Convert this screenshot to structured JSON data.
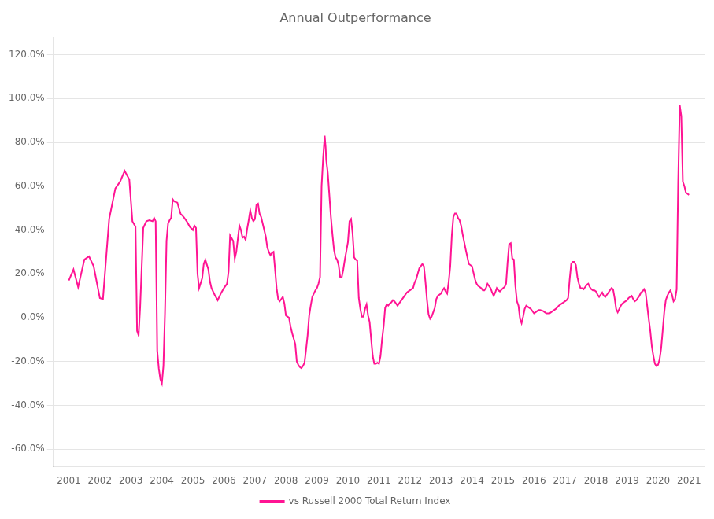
{
  "chart_data": {
    "type": "line",
    "title": "Annual Outperformance",
    "x": [
      2001.0,
      2001.15,
      2001.3,
      2001.5,
      2001.65,
      2001.8,
      2002.0,
      2002.1,
      2002.3,
      2002.5,
      2002.65,
      2002.8,
      2002.95,
      2003.05,
      2003.15,
      2003.2,
      2003.25,
      2003.3,
      2003.4,
      2003.5,
      2003.6,
      2003.7,
      2003.75,
      2003.8,
      2003.85,
      2003.9,
      2003.95,
      2004.0,
      2004.05,
      2004.1,
      2004.15,
      2004.2,
      2004.25,
      2004.3,
      2004.35,
      2004.4,
      2004.5,
      2004.6,
      2004.7,
      2004.8,
      2004.9,
      2005.0,
      2005.05,
      2005.1,
      2005.15,
      2005.2,
      2005.3,
      2005.35,
      2005.4,
      2005.5,
      2005.55,
      2005.6,
      2005.7,
      2005.8,
      2005.9,
      2006.0,
      2006.1,
      2006.15,
      2006.2,
      2006.3,
      2006.35,
      2006.4,
      2006.5,
      2006.55,
      2006.6,
      2006.65,
      2006.7,
      2006.75,
      2006.8,
      2006.85,
      2006.9,
      2006.95,
      2007.0,
      2007.05,
      2007.1,
      2007.15,
      2007.2,
      2007.3,
      2007.35,
      2007.4,
      2007.45,
      2007.5,
      2007.55,
      2007.6,
      2007.65,
      2007.7,
      2007.75,
      2007.8,
      2007.9,
      2007.95,
      2008.0,
      2008.05,
      2008.1,
      2008.15,
      2008.2,
      2008.3,
      2008.35,
      2008.4,
      2008.45,
      2008.5,
      2008.55,
      2008.6,
      2008.65,
      2008.7,
      2008.75,
      2008.8,
      2008.85,
      2008.9,
      2008.95,
      2009.0,
      2009.05,
      2009.1,
      2009.15,
      2009.2,
      2009.25,
      2009.28,
      2009.3,
      2009.35,
      2009.4,
      2009.45,
      2009.5,
      2009.55,
      2009.6,
      2009.65,
      2009.7,
      2009.75,
      2009.8,
      2009.85,
      2009.9,
      2010.0,
      2010.05,
      2010.1,
      2010.15,
      2010.2,
      2010.25,
      2010.3,
      2010.35,
      2010.4,
      2010.45,
      2010.5,
      2010.55,
      2010.6,
      2010.65,
      2010.7,
      2010.75,
      2010.8,
      2010.85,
      2010.9,
      2010.95,
      2011.0,
      2011.05,
      2011.1,
      2011.15,
      2011.2,
      2011.25,
      2011.3,
      2011.35,
      2011.4,
      2011.45,
      2011.5,
      2011.55,
      2011.6,
      2011.65,
      2011.7,
      2011.75,
      2011.8,
      2011.9,
      2012.0,
      2012.1,
      2012.15,
      2012.2,
      2012.3,
      2012.4,
      2012.45,
      2012.5,
      2012.55,
      2012.6,
      2012.65,
      2012.7,
      2012.75,
      2012.8,
      2012.85,
      2012.9,
      2013.0,
      2013.05,
      2013.1,
      2013.15,
      2013.2,
      2013.25,
      2013.3,
      2013.35,
      2013.4,
      2013.45,
      2013.5,
      2013.55,
      2013.6,
      2013.65,
      2013.7,
      2013.8,
      2013.9,
      2014.0,
      2014.1,
      2014.15,
      2014.2,
      2014.3,
      2014.35,
      2014.4,
      2014.45,
      2014.5,
      2014.55,
      2014.6,
      2014.65,
      2014.7,
      2014.75,
      2014.8,
      2014.85,
      2014.9,
      2015.0,
      2015.05,
      2015.1,
      2015.15,
      2015.2,
      2015.25,
      2015.3,
      2015.35,
      2015.4,
      2015.45,
      2015.5,
      2015.55,
      2015.6,
      2015.65,
      2015.7,
      2015.75,
      2015.8,
      2015.9,
      2016.0,
      2016.05,
      2016.1,
      2016.15,
      2016.2,
      2016.3,
      2016.35,
      2016.4,
      2016.5,
      2016.55,
      2016.6,
      2016.7,
      2016.8,
      2016.9,
      2016.95,
      2017.0,
      2017.05,
      2017.1,
      2017.15,
      2017.2,
      2017.25,
      2017.3,
      2017.35,
      2017.4,
      2017.45,
      2017.5,
      2017.55,
      2017.6,
      2017.65,
      2017.7,
      2017.75,
      2017.8,
      2017.85,
      2017.9,
      2017.95,
      2018.0,
      2018.05,
      2018.1,
      2018.15,
      2018.2,
      2018.25,
      2018.3,
      2018.35,
      2018.4,
      2018.45,
      2018.5,
      2018.55,
      2018.6,
      2018.65,
      2018.7,
      2018.75,
      2018.8,
      2018.85,
      2018.9,
      2018.95,
      2019.0,
      2019.05,
      2019.1,
      2019.15,
      2019.2,
      2019.25,
      2019.3,
      2019.35,
      2019.4,
      2019.45,
      2019.5,
      2019.55,
      2019.6,
      2019.65,
      2019.7,
      2019.75,
      2019.8,
      2019.85,
      2019.9,
      2019.95,
      2020.0,
      2020.05,
      2020.1,
      2020.15,
      2020.2,
      2020.25,
      2020.3,
      2020.35,
      2020.4,
      2020.45,
      2020.5,
      2020.55,
      2020.6,
      2020.65,
      2020.7,
      2020.75,
      2020.8,
      2020.85,
      2020.9,
      2020.95,
      2021.0
    ],
    "series": [
      {
        "name": "vs Russell 2000 Total Return Index",
        "color": "#FF1493",
        "values": [
          0.17,
          0.22,
          0.14,
          0.265,
          0.28,
          0.235,
          0.09,
          0.085,
          0.45,
          0.59,
          0.62,
          0.67,
          0.63,
          0.44,
          0.415,
          -0.06,
          -0.08,
          0.05,
          0.41,
          0.44,
          0.445,
          0.44,
          0.455,
          0.44,
          -0.15,
          -0.23,
          -0.28,
          -0.3,
          -0.22,
          0.02,
          0.35,
          0.43,
          0.445,
          0.455,
          0.54,
          0.53,
          0.525,
          0.475,
          0.46,
          0.44,
          0.415,
          0.4,
          0.42,
          0.41,
          0.2,
          0.135,
          0.18,
          0.245,
          0.265,
          0.22,
          0.165,
          0.135,
          0.105,
          0.08,
          0.11,
          0.135,
          0.155,
          0.21,
          0.375,
          0.35,
          0.27,
          0.3,
          0.42,
          0.4,
          0.365,
          0.37,
          0.355,
          0.405,
          0.445,
          0.49,
          0.455,
          0.44,
          0.45,
          0.515,
          0.52,
          0.475,
          0.46,
          0.4,
          0.37,
          0.32,
          0.3,
          0.285,
          0.295,
          0.3,
          0.22,
          0.135,
          0.085,
          0.075,
          0.095,
          0.065,
          0.01,
          0.005,
          0.0,
          -0.04,
          -0.07,
          -0.12,
          -0.2,
          -0.215,
          -0.225,
          -0.23,
          -0.22,
          -0.205,
          -0.145,
          -0.08,
          0.01,
          0.055,
          0.095,
          0.11,
          0.125,
          0.135,
          0.155,
          0.185,
          0.6,
          0.73,
          0.83,
          0.78,
          0.72,
          0.66,
          0.56,
          0.46,
          0.38,
          0.31,
          0.275,
          0.265,
          0.24,
          0.185,
          0.185,
          0.22,
          0.265,
          0.345,
          0.44,
          0.45,
          0.385,
          0.275,
          0.265,
          0.26,
          0.09,
          0.04,
          0.005,
          0.005,
          0.04,
          0.06,
          0.01,
          -0.02,
          -0.1,
          -0.175,
          -0.21,
          -0.21,
          -0.205,
          -0.21,
          -0.175,
          -0.1,
          -0.04,
          0.045,
          0.06,
          0.055,
          0.065,
          0.07,
          0.08,
          0.075,
          0.065,
          0.055,
          0.065,
          0.075,
          0.085,
          0.095,
          0.115,
          0.125,
          0.135,
          0.16,
          0.175,
          0.225,
          0.245,
          0.235,
          0.165,
          0.08,
          0.015,
          -0.005,
          0.005,
          0.025,
          0.045,
          0.085,
          0.1,
          0.11,
          0.125,
          0.135,
          0.12,
          0.11,
          0.165,
          0.235,
          0.375,
          0.46,
          0.475,
          0.475,
          0.455,
          0.445,
          0.42,
          0.38,
          0.31,
          0.245,
          0.235,
          0.175,
          0.155,
          0.145,
          0.135,
          0.125,
          0.125,
          0.135,
          0.155,
          0.145,
          0.135,
          0.115,
          0.1,
          0.115,
          0.135,
          0.125,
          0.12,
          0.135,
          0.14,
          0.155,
          0.255,
          0.335,
          0.34,
          0.27,
          0.265,
          0.145,
          0.075,
          0.055,
          -0.005,
          -0.025,
          0.005,
          0.04,
          0.055,
          0.05,
          0.04,
          0.02,
          0.025,
          0.03,
          0.035,
          0.035,
          0.03,
          0.025,
          0.02,
          0.02,
          0.025,
          0.03,
          0.04,
          0.055,
          0.065,
          0.07,
          0.075,
          0.08,
          0.09,
          0.175,
          0.245,
          0.255,
          0.255,
          0.24,
          0.185,
          0.155,
          0.135,
          0.135,
          0.13,
          0.14,
          0.15,
          0.155,
          0.14,
          0.13,
          0.125,
          0.125,
          0.12,
          0.105,
          0.095,
          0.105,
          0.115,
          0.1,
          0.095,
          0.105,
          0.115,
          0.125,
          0.135,
          0.13,
          0.09,
          0.04,
          0.025,
          0.04,
          0.055,
          0.065,
          0.07,
          0.075,
          0.08,
          0.09,
          0.095,
          0.1,
          0.085,
          0.075,
          0.08,
          0.09,
          0.1,
          0.115,
          0.12,
          0.13,
          0.115,
          0.055,
          -0.005,
          -0.06,
          -0.13,
          -0.175,
          -0.21,
          -0.22,
          -0.215,
          -0.19,
          -0.14,
          -0.06,
          0.025,
          0.08,
          0.1,
          0.115,
          0.125,
          0.105,
          0.075,
          0.085,
          0.13,
          0.62,
          0.97,
          0.92,
          0.62,
          0.6,
          0.57,
          0.565,
          0.56
        ]
      }
    ],
    "xlim": [
      2000.5,
      2021.5
    ],
    "xticks": [
      2001,
      2002,
      2003,
      2004,
      2005,
      2006,
      2007,
      2008,
      2009,
      2010,
      2011,
      2012,
      2013,
      2014,
      2015,
      2016,
      2017,
      2018,
      2019,
      2020,
      2021
    ],
    "ylim": [
      -0.68,
      1.28
    ],
    "yticks": [
      {
        "value": -0.6,
        "label": "-60.0%"
      },
      {
        "value": -0.4,
        "label": "-40.0%"
      },
      {
        "value": -0.2,
        "label": "-20.0%"
      },
      {
        "value": 0.0,
        "label": "0.0%"
      },
      {
        "value": 0.2,
        "label": "20.0%"
      },
      {
        "value": 0.4,
        "label": "40.0%"
      },
      {
        "value": 0.6,
        "label": "60.0%"
      },
      {
        "value": 0.8,
        "label": "80.0%"
      },
      {
        "value": 1.0,
        "label": "100.0%"
      },
      {
        "value": 1.2,
        "label": "120.0%"
      }
    ],
    "grid": "y",
    "legend": "bottom"
  }
}
